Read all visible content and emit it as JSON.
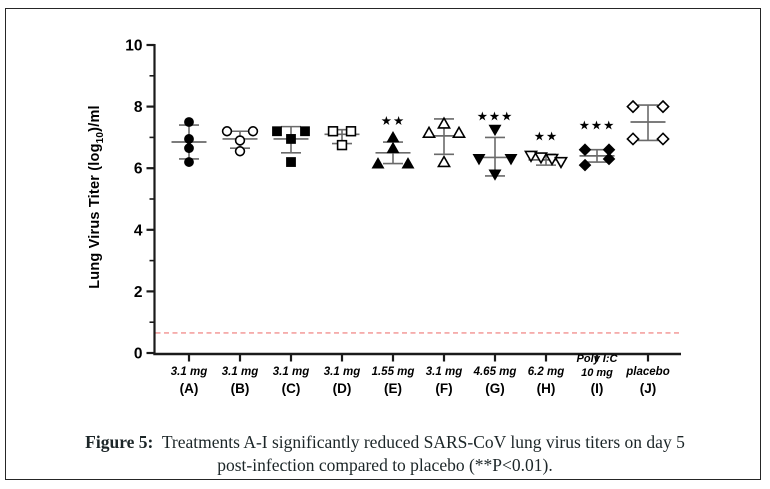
{
  "figure": {
    "caption_prefix": "Figure 5:",
    "caption_line1": "Treatments A-I significantly reduced SARS-CoV lung virus titers on day 5",
    "caption_line2": "post-infection compared to placebo (**P<0.01)."
  },
  "chart_data": {
    "type": "scatter",
    "title": "",
    "xlabel": "",
    "ylabel_pre": "Lung Virus Titer (log",
    "ylabel_sub": "10",
    "ylabel_post": ")/ml",
    "ylim": [
      0,
      10
    ],
    "yticks": [
      0,
      2,
      4,
      6,
      8,
      10
    ],
    "yticks_minor": [
      1,
      3,
      5,
      7,
      9
    ],
    "grid": false,
    "legend": "none",
    "marker_color": "#000000",
    "errorbar_color": "#6a6a6a",
    "axis_color": "#1a1a1a",
    "detection_line": {
      "value": 0.65,
      "color": "#f2908f",
      "style": "dashed"
    },
    "groups": [
      {
        "letter": "(A)",
        "dose_lines": [
          "3.1 mg"
        ],
        "marker": "circle-filled",
        "values": [
          7.5,
          6.95,
          6.65,
          6.2
        ],
        "dx": [
          0,
          0,
          0,
          0
        ],
        "mean": 6.85,
        "err_low": 6.3,
        "err_high": 7.4,
        "sig": "",
        "sig_value_y": null
      },
      {
        "letter": "(B)",
        "dose_lines": [
          "3.1 mg"
        ],
        "marker": "circle-open",
        "values": [
          7.2,
          7.2,
          6.9,
          6.55
        ],
        "dx": [
          -13,
          13,
          0,
          0
        ],
        "mean": 6.95,
        "err_low": 6.65,
        "err_high": 7.2,
        "sig": "",
        "sig_value_y": null
      },
      {
        "letter": "(C)",
        "dose_lines": [
          "3.1 mg"
        ],
        "marker": "square-filled",
        "values": [
          7.2,
          7.2,
          6.95,
          6.2
        ],
        "dx": [
          -14,
          14,
          0,
          0
        ],
        "mean": 6.95,
        "err_low": 6.5,
        "err_high": 7.35,
        "sig": "",
        "sig_value_y": null
      },
      {
        "letter": "(D)",
        "dose_lines": [
          "3.1 mg"
        ],
        "marker": "square-open",
        "values": [
          7.2,
          7.2,
          6.75
        ],
        "dx": [
          -9,
          9,
          0
        ],
        "mean": 7.1,
        "err_low": 6.8,
        "err_high": 7.25,
        "sig": "",
        "sig_value_y": null
      },
      {
        "letter": "(E)",
        "dose_lines": [
          "1.55 mg"
        ],
        "marker": "triangle-up-filled",
        "values": [
          7.0,
          6.65,
          6.15,
          6.15
        ],
        "dx": [
          0,
          0,
          -15,
          15
        ],
        "mean": 6.5,
        "err_low": 6.15,
        "err_high": 6.85,
        "sig": "**",
        "sig_value_y": 7.55
      },
      {
        "letter": "(F)",
        "dose_lines": [
          "3.1 mg"
        ],
        "marker": "triangle-up-open",
        "values": [
          7.45,
          7.15,
          7.15,
          6.2
        ],
        "dx": [
          0,
          -15,
          15,
          0
        ],
        "mean": 7.05,
        "err_low": 6.45,
        "err_high": 7.6,
        "sig": "",
        "sig_value_y": null
      },
      {
        "letter": "(G)",
        "dose_lines": [
          "4.65 mg"
        ],
        "marker": "triangle-down-filled",
        "values": [
          7.25,
          6.3,
          6.3,
          5.8
        ],
        "dx": [
          0,
          -16,
          16,
          0
        ],
        "mean": 6.35,
        "err_low": 5.75,
        "err_high": 7.0,
        "sig": "***",
        "sig_value_y": 7.7
      },
      {
        "letter": "(H)",
        "dose_lines": [
          "6.2 mg"
        ],
        "marker": "triangle-down-open",
        "values": [
          6.4,
          6.35,
          6.3,
          6.2
        ],
        "dx": [
          -15,
          -5,
          6,
          15
        ],
        "mean": 6.27,
        "err_low": 6.1,
        "err_high": 6.45,
        "sig": "**",
        "sig_value_y": 7.05
      },
      {
        "letter": "(I)",
        "dose_lines": [
          "Poly I:C",
          "10 mg"
        ],
        "marker": "diamond-filled",
        "values": [
          6.6,
          6.6,
          6.3,
          6.1
        ],
        "dx": [
          -12,
          12,
          12,
          -12
        ],
        "mean": 6.4,
        "err_low": 6.2,
        "err_high": 6.6,
        "sig": "***",
        "sig_value_y": 7.4
      },
      {
        "letter": "(J)",
        "dose_lines": [
          "placebo"
        ],
        "marker": "diamond-open",
        "values": [
          8.0,
          8.0,
          6.95,
          6.95
        ],
        "dx": [
          -15,
          15,
          15,
          -15
        ],
        "mean": 7.5,
        "err_low": 6.9,
        "err_high": 8.05,
        "sig": "",
        "sig_value_y": null
      }
    ]
  }
}
